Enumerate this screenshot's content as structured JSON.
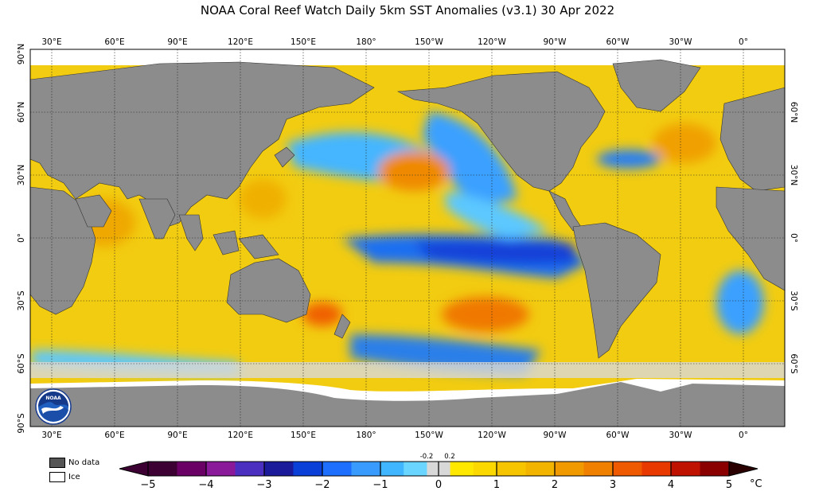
{
  "title": "NOAA Coral Reef Watch Daily 5km SST Anomalies  (v3.1)   30 Apr 2022",
  "lon_labels": [
    "30°E",
    "60°E",
    "90°E",
    "120°E",
    "150°E",
    "180°",
    "150°W",
    "120°W",
    "90°W",
    "60°W",
    "30°W",
    "0°"
  ],
  "lat_labels_left": [
    "90°N",
    "60°N",
    "30°N",
    "0°",
    "30°S",
    "60°S",
    "90°S"
  ],
  "lat_labels_right": [
    "60°N",
    "30°N",
    "0°",
    "30°S",
    "60°S"
  ],
  "legend": {
    "nodata_label": "No data",
    "ice_label": "Ice",
    "nodata_color": "#555555",
    "ice_color": "#ffffff"
  },
  "colorbar": {
    "ticks": [
      "−5",
      "−4",
      "−3",
      "−2",
      "−1",
      "0",
      "1",
      "2",
      "3",
      "4",
      "5"
    ],
    "small_ticks": [
      "-0.2",
      "0.2"
    ],
    "unit": "°C",
    "colors": [
      "#3d0033",
      "#5a0060",
      "#7a0090",
      "#3a2fb0",
      "#3f46d8",
      "#2a50e8",
      "#1a2fd0",
      "#0a40e6",
      "#1f6fff",
      "#3aa0ff",
      "#4fc4ff",
      "#7fe3ff",
      "#d8d8d8",
      "#ffe800",
      "#ffd200",
      "#f5b400",
      "#ef9a00",
      "#f07800",
      "#f05a00",
      "#e83000",
      "#d01800",
      "#b00000",
      "#800000",
      "#5a0000"
    ]
  },
  "colors": {
    "land": "#8c8c8c",
    "neutral": "#d8d8d8",
    "warm": "#f2c200",
    "cool": "#3a9bf0",
    "ice": "#ffffff"
  }
}
